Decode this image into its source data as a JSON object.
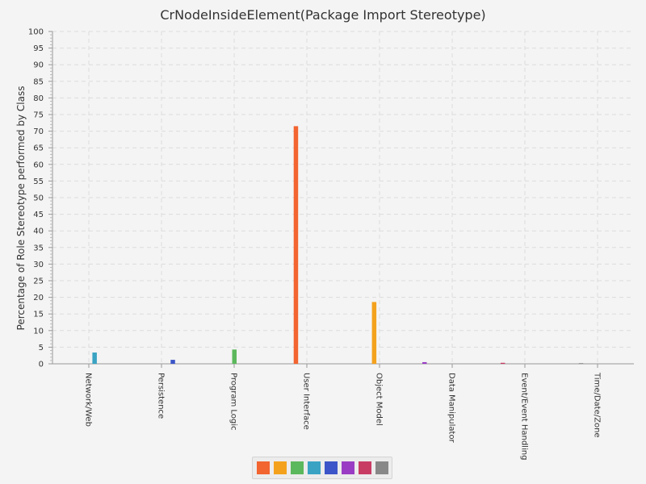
{
  "chart_data": {
    "type": "bar",
    "title": "CrNodeInsideElement(Package Import Stereotype)",
    "xlabel": "",
    "ylabel": "Percentage of Role Stereotype performed by Class",
    "ylim": [
      0,
      100
    ],
    "yticks": [
      0,
      5,
      10,
      15,
      20,
      25,
      30,
      35,
      40,
      45,
      50,
      55,
      60,
      65,
      70,
      75,
      80,
      85,
      90,
      95,
      100
    ],
    "grid": true,
    "legend_position": "bottom",
    "categories": [
      "Network/Web",
      "Persistence",
      "Program Logic",
      "User Interface",
      "Object Model",
      "Data Manipulator",
      "Event/Event Handling",
      "Time/Date/Zone"
    ],
    "series": [
      {
        "color": "#f26430",
        "values": [
          0,
          0,
          0,
          71.5,
          0,
          0,
          0,
          0
        ]
      },
      {
        "color": "#f4a21d",
        "values": [
          0,
          0,
          0,
          0,
          18.6,
          0,
          0,
          0
        ]
      },
      {
        "color": "#5cb85c",
        "values": [
          0,
          0,
          4.3,
          0,
          0,
          0,
          0,
          0
        ]
      },
      {
        "color": "#3aa3c4",
        "values": [
          3.4,
          0,
          0,
          0,
          0,
          0,
          0,
          0
        ]
      },
      {
        "color": "#3c55c8",
        "values": [
          0,
          1.2,
          0,
          0,
          0,
          0,
          0,
          0
        ]
      },
      {
        "color": "#9a3dc4",
        "values": [
          0,
          0,
          0,
          0,
          0,
          0.5,
          0,
          0
        ]
      },
      {
        "color": "#c83c64",
        "values": [
          0,
          0,
          0,
          0,
          0,
          0,
          0.3,
          0
        ]
      },
      {
        "color": "#888888",
        "values": [
          0,
          0,
          0,
          0,
          0,
          0,
          0,
          0.2
        ]
      }
    ]
  }
}
